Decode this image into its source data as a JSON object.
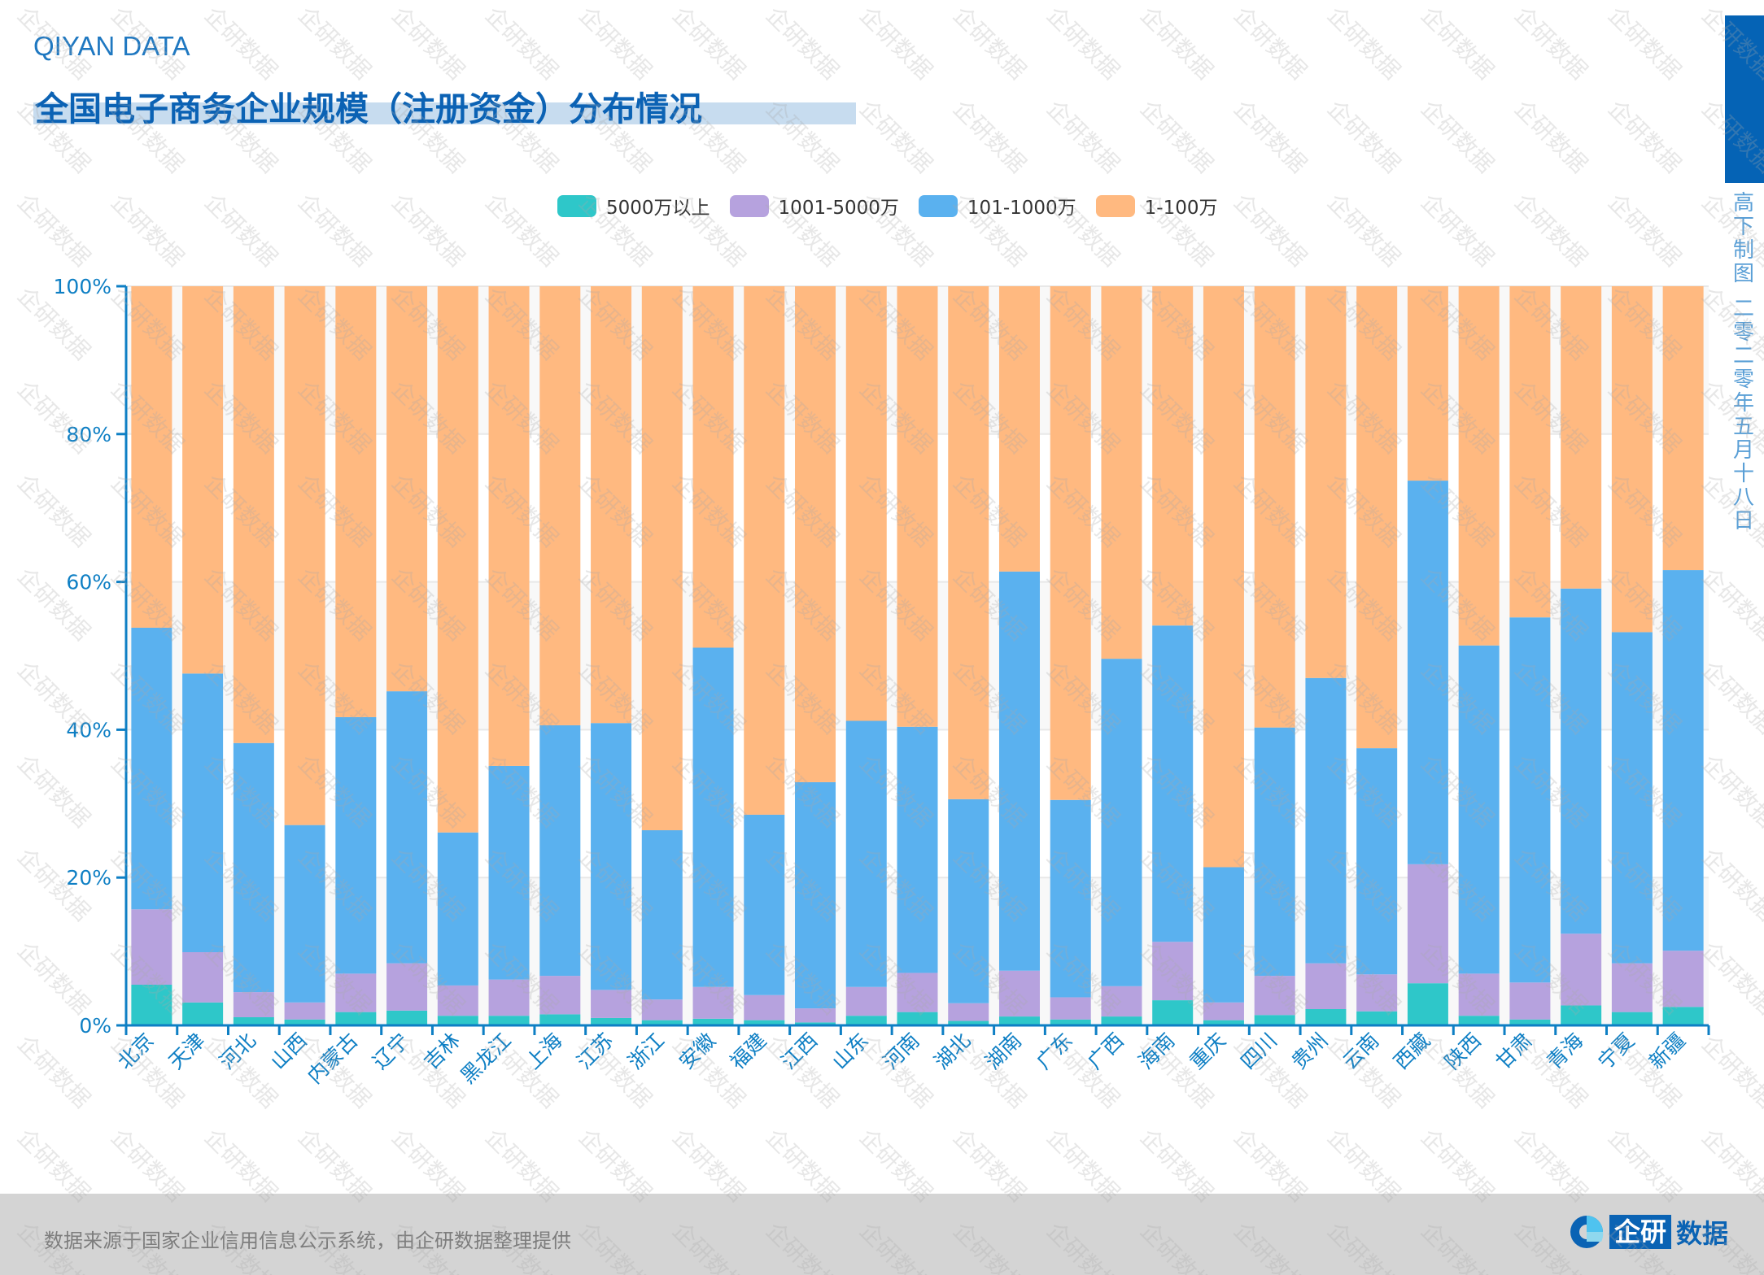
{
  "header": {
    "brand": "QIYAN DATA",
    "title": "全国电子商务企业规模（注册资金）分布情况"
  },
  "side": {
    "maker": "高下制图",
    "date": "二零二零年五月十八日"
  },
  "watermark_text": "企研数据",
  "footer": {
    "source": "数据来源于国家企业信用信息公示系统，由企研数据整理提供",
    "logo_box": "企研",
    "logo_tail": "数据"
  },
  "colors": {
    "axis": "#0e7fc4",
    "gridline": "#e8e8e8",
    "accent": "#0a63b4"
  },
  "chart_data": {
    "type": "bar",
    "stacked": true,
    "normalized": true,
    "title": "全国电子商务企业规模（注册资金）分布情况",
    "xlabel": "",
    "ylabel": "",
    "ylim": [
      0,
      100
    ],
    "yticks": [
      "0%",
      "20%",
      "40%",
      "60%",
      "80%",
      "100%"
    ],
    "grid": true,
    "legend_position": "top-center",
    "categories": [
      "北京",
      "天津",
      "河北",
      "山西",
      "内蒙古",
      "辽宁",
      "吉林",
      "黑龙江",
      "上海",
      "江苏",
      "浙江",
      "安徽",
      "福建",
      "江西",
      "山东",
      "河南",
      "湖北",
      "湖南",
      "广东",
      "广西",
      "海南",
      "重庆",
      "四川",
      "贵州",
      "云南",
      "西藏",
      "陕西",
      "甘肃",
      "青海",
      "宁夏",
      "新疆"
    ],
    "series": [
      {
        "name": "5000万以上",
        "color": "#2ec7c9",
        "values": [
          5.5,
          3.1,
          1.1,
          0.8,
          1.8,
          2.0,
          1.3,
          1.3,
          1.5,
          1.0,
          0.7,
          0.9,
          0.7,
          0.4,
          1.3,
          1.8,
          0.6,
          1.2,
          0.8,
          1.2,
          3.4,
          0.7,
          1.4,
          2.2,
          1.9,
          5.7,
          1.3,
          0.8,
          2.7,
          1.8,
          2.5
        ]
      },
      {
        "name": "1001-5000万",
        "color": "#b6a2de",
        "values": [
          10.2,
          6.8,
          3.4,
          2.3,
          5.2,
          6.4,
          4.1,
          4.9,
          5.2,
          3.8,
          2.8,
          4.3,
          3.4,
          1.9,
          3.9,
          5.3,
          2.4,
          6.2,
          3.0,
          4.1,
          7.9,
          2.4,
          5.3,
          6.2,
          5.0,
          16.1,
          5.7,
          5.0,
          9.7,
          6.6,
          7.6
        ]
      },
      {
        "name": "101-1000万",
        "color": "#5ab1ef",
        "values": [
          38.1,
          37.7,
          33.7,
          24.0,
          34.7,
          36.8,
          20.7,
          28.9,
          33.9,
          36.1,
          22.9,
          45.9,
          24.4,
          30.6,
          36.0,
          33.3,
          27.6,
          54.0,
          26.7,
          44.3,
          42.8,
          18.3,
          33.6,
          38.6,
          30.6,
          51.9,
          44.4,
          49.4,
          46.7,
          44.8,
          51.5
        ]
      },
      {
        "name": "1-100万",
        "color": "#ffb980",
        "values": [
          46.2,
          52.4,
          61.8,
          72.9,
          58.3,
          54.8,
          73.9,
          64.9,
          59.4,
          59.1,
          73.6,
          48.9,
          71.5,
          67.1,
          58.8,
          59.6,
          69.4,
          38.6,
          69.5,
          50.4,
          45.9,
          78.6,
          59.7,
          53.0,
          62.5,
          26.3,
          48.6,
          44.8,
          40.9,
          46.8,
          38.4
        ]
      }
    ]
  }
}
